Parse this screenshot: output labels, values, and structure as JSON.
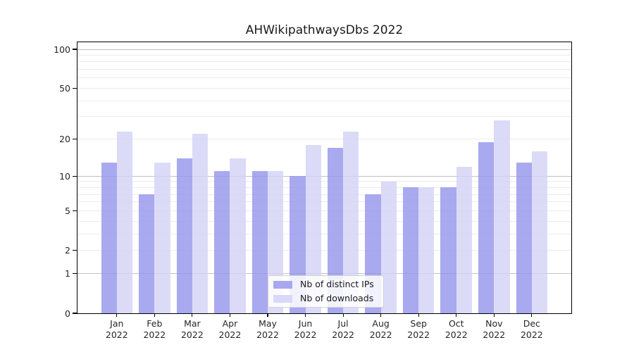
{
  "figure": {
    "title": "AHWikipathwaysDbs 2022"
  },
  "colors": {
    "axis": "#000000",
    "grid_major": "#c2c2c2",
    "grid_minor": "#ececec",
    "bar_distinct_ips_fill": "rgba(150,150,237,0.82)",
    "bar_downloads_fill": "rgba(211,211,246,0.82)",
    "legend_swatch_distinct_ips": "#a8a8ef",
    "legend_swatch_downloads": "#d8d8f8",
    "legend_border": "#d2d2d2",
    "text": "#262626"
  },
  "chart_data": {
    "type": "bar",
    "title": "AHWikipathwaysDbs 2022",
    "categories": [
      "Jan",
      "Feb",
      "Mar",
      "Apr",
      "May",
      "Jun",
      "Jul",
      "Aug",
      "Sep",
      "Oct",
      "Nov",
      "Dec"
    ],
    "x_tick_second_line": "2022",
    "series": [
      {
        "name": "Nb of distinct IPs",
        "values": [
          13,
          7,
          14,
          11,
          11,
          10,
          17,
          7,
          8,
          8,
          19,
          13
        ],
        "fill": "rgba(150,150,237,0.82)",
        "swatch": "#a8a8ef"
      },
      {
        "name": "Nb of downloads",
        "values": [
          23,
          13,
          22,
          14,
          11,
          18,
          23,
          9,
          8,
          12,
          28,
          16
        ],
        "fill": "rgba(211,211,246,0.82)",
        "swatch": "#d8d8f8"
      }
    ],
    "xlabel": "",
    "ylabel": "",
    "yscale": "log10(value+1)",
    "ylim": [
      0,
      113
    ],
    "y_ticks": [
      0,
      1,
      2,
      5,
      10,
      20,
      50,
      100
    ],
    "grid_major": [
      1,
      10,
      100
    ],
    "grid_minor": [
      2,
      3,
      4,
      5,
      6,
      7,
      8,
      9,
      20,
      30,
      40,
      50,
      60,
      70,
      80,
      90
    ],
    "grid": "on",
    "legend_position": "lower center (inside plot)"
  }
}
